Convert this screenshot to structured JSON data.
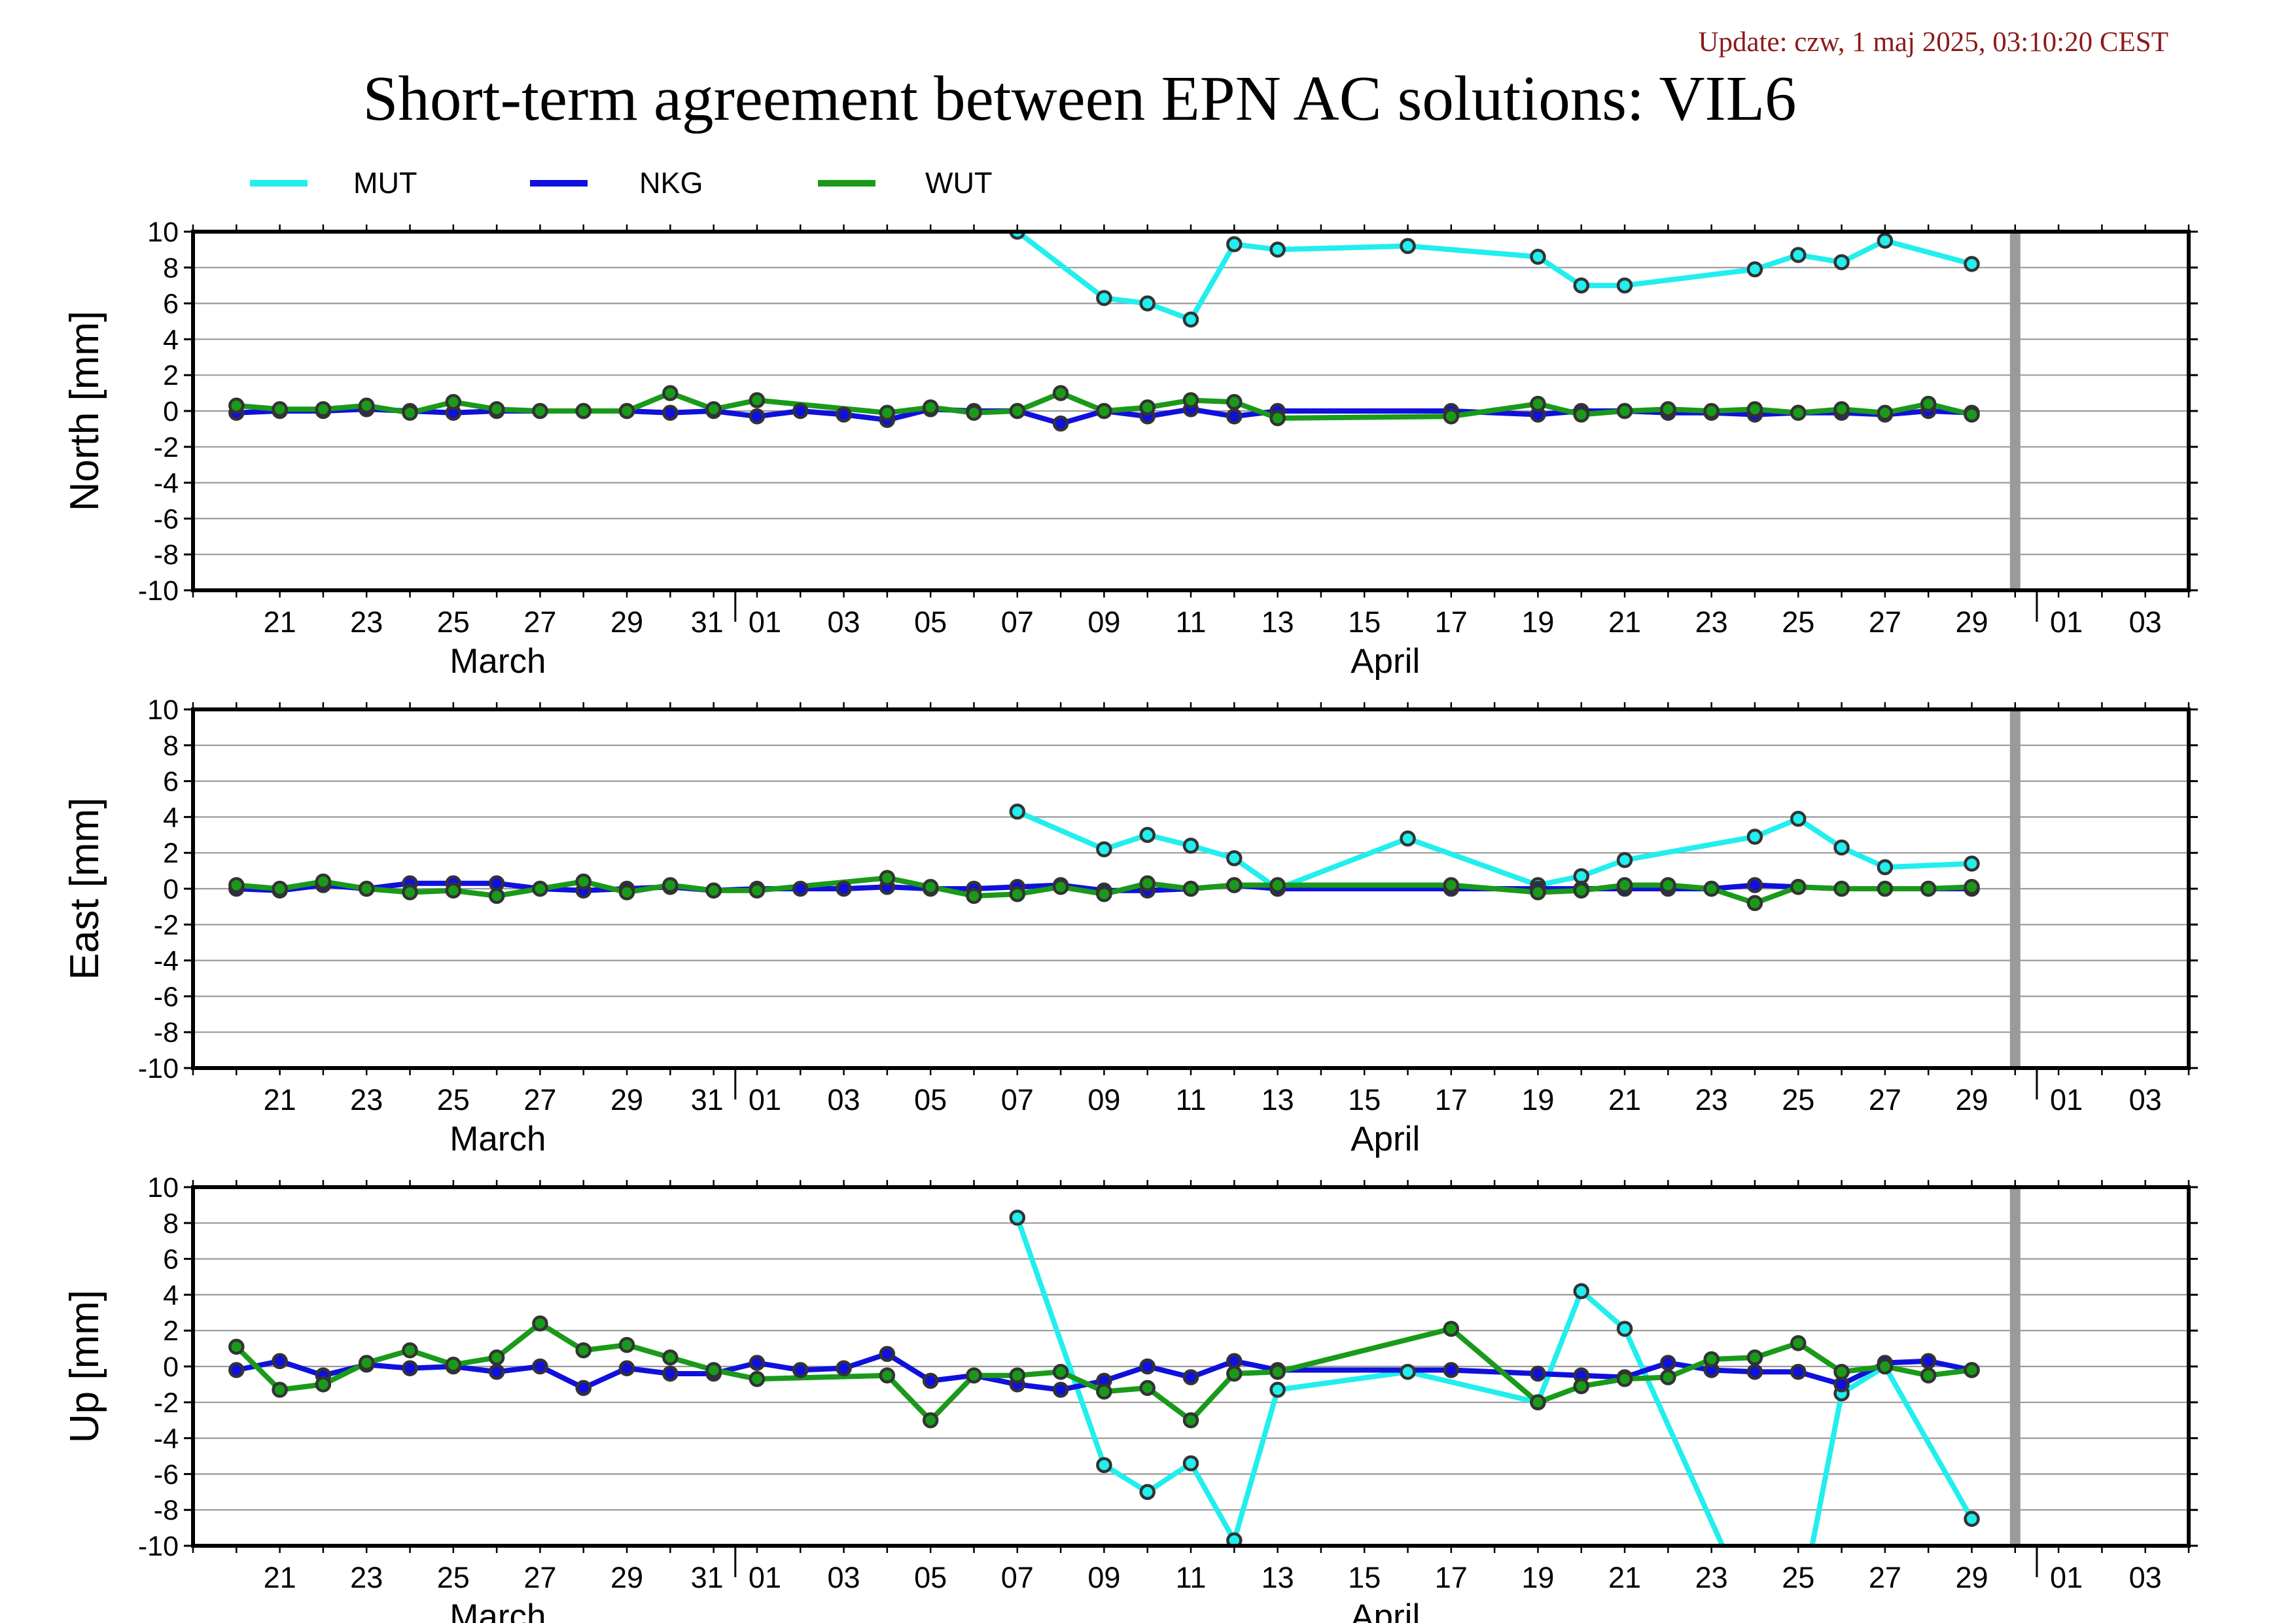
{
  "update_text": "Update: czw, 1 maj 2025, 03:10:20 CEST",
  "title": "Short-term agreement between EPN AC solutions: VIL6",
  "colors": {
    "MUT": "#22eeee",
    "NKG": "#1010dd",
    "WUT": "#1a9a1a",
    "update": "#8b1a1a",
    "marker": "#333333"
  },
  "legend": [
    {
      "name": "MUT",
      "color": "#22eeee"
    },
    {
      "name": "NKG",
      "color": "#1010dd"
    },
    {
      "name": "WUT",
      "color": "#1a9a1a"
    }
  ],
  "chart_data": [
    {
      "type": "line",
      "ylabel": "North [mm]",
      "ylim": [
        -10,
        10
      ],
      "xlim": [
        "2025-03-19",
        "2025-05-04"
      ],
      "x_ticks": [
        "21",
        "23",
        "25",
        "27",
        "29",
        "31",
        "01",
        "03",
        "05",
        "07",
        "09",
        "11",
        "13",
        "15",
        "17",
        "19",
        "21",
        "23",
        "25",
        "27",
        "29",
        "01",
        "03"
      ],
      "month_labels": [
        "March",
        "April"
      ],
      "grid": true,
      "current_day": "2025-04-30",
      "series": [
        {
          "name": "MUT",
          "x": [
            "2025-04-07",
            "2025-04-09",
            "2025-04-10",
            "2025-04-11",
            "2025-04-12",
            "2025-04-13",
            "2025-04-16",
            "2025-04-19",
            "2025-04-20",
            "2025-04-21",
            "2025-04-24",
            "2025-04-25",
            "2025-04-26",
            "2025-04-27",
            "2025-04-29"
          ],
          "values": [
            10.0,
            6.3,
            6.0,
            5.1,
            9.3,
            9.0,
            9.2,
            8.6,
            7.0,
            7.0,
            7.9,
            8.7,
            8.3,
            9.5,
            8.2
          ]
        },
        {
          "name": "NKG",
          "x": [
            "2025-03-20",
            "2025-03-21",
            "2025-03-22",
            "2025-03-23",
            "2025-03-24",
            "2025-03-25",
            "2025-03-26",
            "2025-03-27",
            "2025-03-28",
            "2025-03-29",
            "2025-03-30",
            "2025-03-31",
            "2025-04-01",
            "2025-04-02",
            "2025-04-03",
            "2025-04-04",
            "2025-04-05",
            "2025-04-06",
            "2025-04-07",
            "2025-04-08",
            "2025-04-09",
            "2025-04-10",
            "2025-04-11",
            "2025-04-12",
            "2025-04-13",
            "2025-04-17",
            "2025-04-19",
            "2025-04-20",
            "2025-04-21",
            "2025-04-22",
            "2025-04-23",
            "2025-04-24",
            "2025-04-25",
            "2025-04-26",
            "2025-04-27",
            "2025-04-28",
            "2025-04-29"
          ],
          "values": [
            -0.1,
            0.0,
            0.0,
            0.1,
            0.0,
            -0.1,
            0.0,
            0.0,
            0.0,
            0.0,
            -0.1,
            0.0,
            -0.3,
            0.0,
            -0.2,
            -0.5,
            0.1,
            0.0,
            0.0,
            -0.7,
            0.0,
            -0.3,
            0.1,
            -0.3,
            0.0,
            0.0,
            -0.2,
            0.0,
            0.0,
            -0.1,
            -0.1,
            -0.2,
            -0.1,
            -0.1,
            -0.2,
            0.0,
            -0.1
          ]
        },
        {
          "name": "WUT",
          "x": [
            "2025-03-20",
            "2025-03-21",
            "2025-03-22",
            "2025-03-23",
            "2025-03-24",
            "2025-03-25",
            "2025-03-26",
            "2025-03-27",
            "2025-03-28",
            "2025-03-29",
            "2025-03-30",
            "2025-03-31",
            "2025-04-01",
            "2025-04-04",
            "2025-04-05",
            "2025-04-06",
            "2025-04-07",
            "2025-04-08",
            "2025-04-09",
            "2025-04-10",
            "2025-04-11",
            "2025-04-12",
            "2025-04-13",
            "2025-04-17",
            "2025-04-19",
            "2025-04-20",
            "2025-04-21",
            "2025-04-22",
            "2025-04-23",
            "2025-04-24",
            "2025-04-25",
            "2025-04-26",
            "2025-04-27",
            "2025-04-28",
            "2025-04-29"
          ],
          "values": [
            0.3,
            0.1,
            0.1,
            0.3,
            -0.1,
            0.5,
            0.1,
            0.0,
            0.0,
            0.0,
            1.0,
            0.1,
            0.6,
            -0.1,
            0.2,
            -0.1,
            0.0,
            1.0,
            0.0,
            0.2,
            0.6,
            0.5,
            -0.4,
            -0.3,
            0.4,
            -0.2,
            0.0,
            0.1,
            0.0,
            0.1,
            -0.1,
            0.1,
            -0.1,
            0.4,
            -0.2
          ]
        }
      ]
    },
    {
      "type": "line",
      "ylabel": "East [mm]",
      "ylim": [
        -10,
        10
      ],
      "xlim": [
        "2025-03-19",
        "2025-05-04"
      ],
      "x_ticks": [
        "21",
        "23",
        "25",
        "27",
        "29",
        "31",
        "01",
        "03",
        "05",
        "07",
        "09",
        "11",
        "13",
        "15",
        "17",
        "19",
        "21",
        "23",
        "25",
        "27",
        "29",
        "01",
        "03"
      ],
      "month_labels": [
        "March",
        "April"
      ],
      "grid": true,
      "current_day": "2025-04-30",
      "series": [
        {
          "name": "MUT",
          "x": [
            "2025-04-07",
            "2025-04-09",
            "2025-04-10",
            "2025-04-11",
            "2025-04-12",
            "2025-04-13",
            "2025-04-16",
            "2025-04-19",
            "2025-04-20",
            "2025-04-21",
            "2025-04-24",
            "2025-04-25",
            "2025-04-26",
            "2025-04-27",
            "2025-04-29"
          ],
          "values": [
            4.3,
            2.2,
            3.0,
            2.4,
            1.7,
            0.0,
            2.8,
            0.2,
            0.7,
            1.6,
            2.9,
            3.9,
            2.3,
            1.2,
            1.4
          ]
        },
        {
          "name": "NKG",
          "x": [
            "2025-03-20",
            "2025-03-21",
            "2025-03-22",
            "2025-03-23",
            "2025-03-24",
            "2025-03-25",
            "2025-03-26",
            "2025-03-27",
            "2025-03-28",
            "2025-03-29",
            "2025-03-30",
            "2025-03-31",
            "2025-04-01",
            "2025-04-02",
            "2025-04-03",
            "2025-04-04",
            "2025-04-05",
            "2025-04-06",
            "2025-04-07",
            "2025-04-08",
            "2025-04-09",
            "2025-04-10",
            "2025-04-11",
            "2025-04-12",
            "2025-04-13",
            "2025-04-17",
            "2025-04-19",
            "2025-04-20",
            "2025-04-21",
            "2025-04-22",
            "2025-04-23",
            "2025-04-24",
            "2025-04-25",
            "2025-04-26",
            "2025-04-27",
            "2025-04-28",
            "2025-04-29"
          ],
          "values": [
            0.0,
            -0.1,
            0.2,
            0.0,
            0.3,
            0.3,
            0.3,
            0.0,
            -0.1,
            0.0,
            0.1,
            -0.1,
            0.0,
            0.0,
            0.0,
            0.1,
            0.0,
            0.0,
            0.1,
            0.2,
            -0.1,
            -0.1,
            0.0,
            0.2,
            0.0,
            0.0,
            0.0,
            0.0,
            0.0,
            0.0,
            0.0,
            0.2,
            0.1,
            0.0,
            0.0,
            0.0,
            0.0
          ]
        },
        {
          "name": "WUT",
          "x": [
            "2025-03-20",
            "2025-03-21",
            "2025-03-22",
            "2025-03-23",
            "2025-03-24",
            "2025-03-25",
            "2025-03-26",
            "2025-03-27",
            "2025-03-28",
            "2025-03-29",
            "2025-03-30",
            "2025-03-31",
            "2025-04-01",
            "2025-04-04",
            "2025-04-05",
            "2025-04-06",
            "2025-04-07",
            "2025-04-08",
            "2025-04-09",
            "2025-04-10",
            "2025-04-11",
            "2025-04-12",
            "2025-04-13",
            "2025-04-17",
            "2025-04-19",
            "2025-04-20",
            "2025-04-21",
            "2025-04-22",
            "2025-04-23",
            "2025-04-24",
            "2025-04-25",
            "2025-04-26",
            "2025-04-27",
            "2025-04-28",
            "2025-04-29"
          ],
          "values": [
            0.2,
            0.0,
            0.4,
            0.0,
            -0.2,
            -0.1,
            -0.4,
            0.0,
            0.4,
            -0.2,
            0.2,
            -0.1,
            -0.1,
            0.6,
            0.1,
            -0.4,
            -0.3,
            0.1,
            -0.3,
            0.3,
            0.0,
            0.2,
            0.2,
            0.2,
            -0.2,
            -0.1,
            0.2,
            0.2,
            0.0,
            -0.8,
            0.1,
            0.0,
            0.0,
            0.0,
            0.1
          ]
        }
      ]
    },
    {
      "type": "line",
      "ylabel": "Up [mm]",
      "ylim": [
        -10,
        10
      ],
      "xlim": [
        "2025-03-19",
        "2025-05-04"
      ],
      "x_ticks": [
        "21",
        "23",
        "25",
        "27",
        "29",
        "31",
        "01",
        "03",
        "05",
        "07",
        "09",
        "11",
        "13",
        "15",
        "17",
        "19",
        "21",
        "23",
        "25",
        "27",
        "29",
        "01",
        "03"
      ],
      "month_labels": [
        "March",
        "April"
      ],
      "grid": true,
      "current_day": "2025-04-30",
      "series": [
        {
          "name": "MUT",
          "x": [
            "2025-04-07",
            "2025-04-09",
            "2025-04-10",
            "2025-04-11",
            "2025-04-12",
            "2025-04-13",
            "2025-04-16",
            "2025-04-19",
            "2025-04-20",
            "2025-04-21",
            "2025-04-24",
            "2025-04-25",
            "2025-04-26",
            "2025-04-27",
            "2025-04-29"
          ],
          "values": [
            8.3,
            -5.5,
            -7.0,
            -5.4,
            -9.7,
            -1.3,
            -0.3,
            -2.0,
            4.2,
            2.1,
            -14.0,
            -14.0,
            -1.5,
            0.0,
            -8.5
          ]
        },
        {
          "name": "NKG",
          "x": [
            "2025-03-20",
            "2025-03-21",
            "2025-03-22",
            "2025-03-23",
            "2025-03-24",
            "2025-03-25",
            "2025-03-26",
            "2025-03-27",
            "2025-03-28",
            "2025-03-29",
            "2025-03-30",
            "2025-03-31",
            "2025-04-01",
            "2025-04-02",
            "2025-04-03",
            "2025-04-04",
            "2025-04-05",
            "2025-04-06",
            "2025-04-07",
            "2025-04-08",
            "2025-04-09",
            "2025-04-10",
            "2025-04-11",
            "2025-04-12",
            "2025-04-13",
            "2025-04-17",
            "2025-04-19",
            "2025-04-20",
            "2025-04-21",
            "2025-04-22",
            "2025-04-23",
            "2025-04-24",
            "2025-04-25",
            "2025-04-26",
            "2025-04-27",
            "2025-04-28",
            "2025-04-29"
          ],
          "values": [
            -0.2,
            0.3,
            -0.5,
            0.1,
            -0.1,
            0.0,
            -0.3,
            0.0,
            -1.2,
            -0.1,
            -0.4,
            -0.4,
            0.2,
            -0.2,
            -0.1,
            0.7,
            -0.8,
            -0.5,
            -1.0,
            -1.3,
            -0.8,
            0.0,
            -0.6,
            0.3,
            -0.2,
            -0.2,
            -0.4,
            -0.5,
            -0.6,
            0.2,
            -0.2,
            -0.3,
            -0.3,
            -1.0,
            0.2,
            0.3,
            -0.2
          ]
        },
        {
          "name": "WUT",
          "x": [
            "2025-03-20",
            "2025-03-21",
            "2025-03-22",
            "2025-03-23",
            "2025-03-24",
            "2025-03-25",
            "2025-03-26",
            "2025-03-27",
            "2025-03-28",
            "2025-03-29",
            "2025-03-30",
            "2025-03-31",
            "2025-04-01",
            "2025-04-04",
            "2025-04-05",
            "2025-04-06",
            "2025-04-07",
            "2025-04-08",
            "2025-04-09",
            "2025-04-10",
            "2025-04-11",
            "2025-04-12",
            "2025-04-13",
            "2025-04-17",
            "2025-04-19",
            "2025-04-20",
            "2025-04-21",
            "2025-04-22",
            "2025-04-23",
            "2025-04-24",
            "2025-04-25",
            "2025-04-26",
            "2025-04-27",
            "2025-04-28",
            "2025-04-29"
          ],
          "values": [
            1.1,
            -1.3,
            -1.0,
            0.2,
            0.9,
            0.1,
            0.5,
            2.4,
            0.9,
            1.2,
            0.5,
            -0.2,
            -0.7,
            -0.5,
            -3.0,
            -0.5,
            -0.5,
            -0.3,
            -1.4,
            -1.2,
            -3.0,
            -0.4,
            -0.3,
            2.1,
            -2.0,
            -1.1,
            -0.7,
            -0.6,
            0.4,
            0.5,
            1.3,
            -0.3,
            0.0,
            -0.5,
            -0.2
          ]
        }
      ]
    }
  ]
}
